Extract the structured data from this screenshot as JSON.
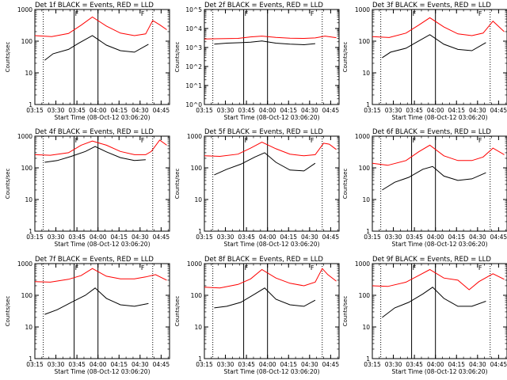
{
  "figure": {
    "start_time_label": "Start Time (08-Oct-12 03:06:20)",
    "ylabel": "Counts/sec",
    "x_tick_labels": [
      "03:15",
      "03:30",
      "03:45",
      "04:00",
      "04:15",
      "04:30",
      "04:45"
    ],
    "vertical_solid_lines_time": [
      "03:43",
      "04:00"
    ],
    "vertical_dotted_lines_time": [
      "03:21",
      "04:39"
    ],
    "markers": [
      {
        "time": "03:43",
        "label": "F"
      },
      {
        "time": "04:30",
        "label": "F"
      }
    ],
    "line_colors": {
      "events": "#000000",
      "lld": "#ff0000"
    }
  },
  "chart_data": [
    {
      "type": "line",
      "title": "Det 1f BLACK = Events, RED = LLD",
      "xlabel": "Start Time (08-Oct-12 03:06:20)",
      "ylabel": "Counts/sec",
      "yscale": "log",
      "y_tick_labels": [
        "1",
        "10",
        "100",
        "1000"
      ],
      "ylim": [
        1,
        1000
      ],
      "xlim_min": [
        9,
        105
      ],
      "series": [
        {
          "name": "LLD",
          "color": "#ff0000",
          "x_min": [
            9,
            21,
            33,
            42,
            50,
            60,
            70,
            80,
            88,
            93,
            98,
            103
          ],
          "values": [
            150,
            140,
            175,
            320,
            580,
            300,
            180,
            150,
            170,
            450,
            330,
            230
          ]
        },
        {
          "name": "Events",
          "color": "#000000",
          "x_min": [
            16,
            22,
            33,
            40,
            50,
            60,
            70,
            80,
            90
          ],
          "values": [
            25,
            40,
            55,
            85,
            150,
            75,
            50,
            45,
            80
          ]
        }
      ]
    },
    {
      "type": "line",
      "title": "Det 2f BLACK = Events, RED = LLD",
      "xlabel": "Start Time (08-Oct-12 03:06:20)",
      "ylabel": "Counts/sec",
      "yscale": "log",
      "y_tick_labels": [
        "10^0",
        "10^1",
        "10^2",
        "10^3",
        "10^4",
        "10^5"
      ],
      "ylim": [
        1,
        100000
      ],
      "xlim_min": [
        9,
        105
      ],
      "series": [
        {
          "name": "LLD",
          "color": "#ff0000",
          "x_min": [
            9,
            20,
            33,
            42,
            50,
            60,
            70,
            80,
            88,
            95,
            103
          ],
          "values": [
            2800,
            2900,
            3000,
            3600,
            4000,
            3400,
            3100,
            3000,
            3200,
            4000,
            3300
          ]
        },
        {
          "name": "Events",
          "color": "#000000",
          "x_min": [
            16,
            25,
            35,
            42,
            50,
            60,
            70,
            80,
            88
          ],
          "values": [
            1500,
            1700,
            1800,
            1900,
            2200,
            1700,
            1500,
            1400,
            1600
          ]
        }
      ]
    },
    {
      "type": "line",
      "title": "Det 3f BLACK = Events, RED = LLD",
      "xlabel": "Start Time (08-Oct-12 03:06:20)",
      "ylabel": "Counts/sec",
      "yscale": "log",
      "y_tick_labels": [
        "1",
        "10",
        "100",
        "1000"
      ],
      "ylim": [
        1,
        1000
      ],
      "xlim_min": [
        9,
        105
      ],
      "series": [
        {
          "name": "LLD",
          "color": "#ff0000",
          "x_min": [
            9,
            21,
            33,
            42,
            50,
            60,
            70,
            80,
            88,
            95,
            103
          ],
          "values": [
            140,
            130,
            180,
            320,
            550,
            280,
            170,
            150,
            180,
            430,
            200
          ]
        },
        {
          "name": "Events",
          "color": "#000000",
          "x_min": [
            16,
            22,
            33,
            40,
            50,
            60,
            70,
            80,
            90
          ],
          "values": [
            30,
            45,
            60,
            90,
            160,
            80,
            55,
            50,
            90
          ]
        }
      ]
    },
    {
      "type": "line",
      "title": "Det 4f BLACK = Events, RED = LLD",
      "xlabel": "Start Time (08-Oct-12 03:06:20)",
      "ylabel": "Counts/sec",
      "yscale": "log",
      "y_tick_labels": [
        "1",
        "10",
        "100",
        "1000"
      ],
      "ylim": [
        1,
        1000
      ],
      "xlim_min": [
        9,
        105
      ],
      "series": [
        {
          "name": "LLD",
          "color": "#ff0000",
          "x_min": [
            9,
            20,
            33,
            42,
            50,
            60,
            70,
            80,
            88,
            92,
            98,
            103
          ],
          "values": [
            260,
            250,
            300,
            520,
            700,
            520,
            330,
            260,
            260,
            330,
            750,
            520
          ]
        },
        {
          "name": "Events",
          "color": "#000000",
          "x_min": [
            16,
            25,
            35,
            45,
            52,
            60,
            70,
            80,
            88
          ],
          "values": [
            150,
            170,
            230,
            330,
            470,
            320,
            210,
            170,
            180
          ]
        }
      ]
    },
    {
      "type": "line",
      "title": "Det 5f BLACK = Events, RED = LLD",
      "xlabel": "Start Time (08-Oct-12 03:06:20)",
      "ylabel": "Counts/sec",
      "yscale": "log",
      "y_tick_labels": [
        "1",
        "10",
        "100",
        "1000"
      ],
      "ylim": [
        1,
        1000
      ],
      "xlim_min": [
        9,
        105
      ],
      "series": [
        {
          "name": "LLD",
          "color": "#ff0000",
          "x_min": [
            9,
            20,
            33,
            42,
            50,
            60,
            70,
            80,
            88,
            94,
            98,
            103
          ],
          "values": [
            240,
            230,
            270,
            420,
            650,
            400,
            270,
            240,
            260,
            600,
            560,
            380
          ]
        },
        {
          "name": "Events",
          "color": "#000000",
          "x_min": [
            16,
            25,
            35,
            45,
            52,
            60,
            70,
            80,
            88
          ],
          "values": [
            60,
            90,
            130,
            220,
            300,
            150,
            85,
            80,
            140
          ]
        }
      ]
    },
    {
      "type": "line",
      "title": "Det 6f BLACK = Events, RED = LLD",
      "xlabel": "Start Time (08-Oct-12 03:06:20)",
      "ylabel": "Counts/sec",
      "yscale": "log",
      "y_tick_labels": [
        "1",
        "10",
        "100",
        "1000"
      ],
      "ylim": [
        1,
        1000
      ],
      "xlim_min": [
        9,
        105
      ],
      "series": [
        {
          "name": "LLD",
          "color": "#ff0000",
          "x_min": [
            9,
            20,
            33,
            42,
            50,
            60,
            70,
            80,
            88,
            95,
            103
          ],
          "values": [
            140,
            120,
            170,
            320,
            520,
            240,
            170,
            170,
            220,
            420,
            260
          ]
        },
        {
          "name": "Events",
          "color": "#000000",
          "x_min": [
            16,
            25,
            35,
            45,
            52,
            60,
            70,
            80,
            90
          ],
          "values": [
            20,
            35,
            50,
            90,
            110,
            55,
            40,
            45,
            70
          ]
        }
      ]
    },
    {
      "type": "line",
      "title": "Det 7f BLACK = Events, RED = LLD",
      "xlabel": "Start Time (08-Oct-12 03:06:20)",
      "ylabel": "Counts/sec",
      "yscale": "log",
      "y_tick_labels": [
        "1",
        "10",
        "100",
        "1000"
      ],
      "ylim": [
        1,
        1000
      ],
      "xlim_min": [
        9,
        105
      ],
      "series": [
        {
          "name": "LLD",
          "color": "#ff0000",
          "x_min": [
            9,
            20,
            33,
            42,
            50,
            60,
            70,
            80,
            88,
            95,
            103
          ],
          "values": [
            270,
            260,
            320,
            420,
            700,
            400,
            330,
            330,
            380,
            450,
            300
          ]
        },
        {
          "name": "Events",
          "color": "#000000",
          "x_min": [
            16,
            25,
            35,
            45,
            52,
            60,
            70,
            80,
            90
          ],
          "values": [
            25,
            35,
            60,
            100,
            170,
            80,
            50,
            45,
            55
          ]
        }
      ]
    },
    {
      "type": "line",
      "title": "Det 8f BLACK = Events, RED = LLD",
      "xlabel": "Start Time (08-Oct-12 03:06:20)",
      "ylabel": "Counts/sec",
      "yscale": "log",
      "y_tick_labels": [
        "1",
        "10",
        "100",
        "1000"
      ],
      "ylim": [
        1,
        1000
      ],
      "xlim_min": [
        9,
        105
      ],
      "series": [
        {
          "name": "LLD",
          "color": "#ff0000",
          "x_min": [
            9,
            20,
            33,
            42,
            50,
            60,
            70,
            80,
            88,
            93,
            97,
            103
          ],
          "values": [
            180,
            170,
            220,
            330,
            650,
            350,
            240,
            200,
            260,
            700,
            450,
            280
          ]
        },
        {
          "name": "Events",
          "color": "#000000",
          "x_min": [
            16,
            25,
            35,
            45,
            52,
            60,
            70,
            80,
            88
          ],
          "values": [
            40,
            45,
            60,
            110,
            170,
            75,
            50,
            45,
            70
          ]
        }
      ]
    },
    {
      "type": "line",
      "title": "Det 9f BLACK = Events, RED = LLD",
      "xlabel": "Start Time (08-Oct-12 03:06:20)",
      "ylabel": "Counts/sec",
      "yscale": "log",
      "y_tick_labels": [
        "1",
        "10",
        "100",
        "1000"
      ],
      "ylim": [
        1,
        1000
      ],
      "xlim_min": [
        9,
        105
      ],
      "series": [
        {
          "name": "LLD",
          "color": "#ff0000",
          "x_min": [
            9,
            20,
            33,
            42,
            50,
            60,
            70,
            78,
            85,
            95,
            103
          ],
          "values": [
            200,
            190,
            260,
            420,
            650,
            350,
            300,
            150,
            270,
            480,
            320
          ]
        },
        {
          "name": "Events",
          "color": "#000000",
          "x_min": [
            16,
            25,
            35,
            45,
            52,
            60,
            70,
            80,
            90
          ],
          "values": [
            20,
            40,
            60,
            110,
            180,
            80,
            45,
            45,
            65
          ]
        }
      ]
    }
  ]
}
